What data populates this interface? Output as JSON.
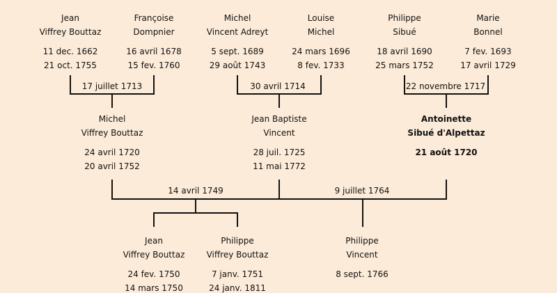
{
  "generation1": [
    {
      "first": "Jean",
      "last": "Viffrey Bouttaz",
      "born": "11 dec. 1662",
      "died": "21 oct. 1755"
    },
    {
      "first": "Françoise",
      "last": "Dompnier",
      "born": "16 avril 1678",
      "died": "15 fev. 1760"
    },
    {
      "first": "Michel",
      "last": "Vincent Adreyt",
      "born": "5 sept. 1689",
      "died": "29 août 1743"
    },
    {
      "first": "Louise",
      "last": "Michel",
      "born": "24 mars 1696",
      "died": "8 fev. 1733"
    },
    {
      "first": "Philippe",
      "last": "Sibué",
      "born": "18 avril 1690",
      "died": "25 mars 1752"
    },
    {
      "first": "Marie",
      "last": "Bonnel",
      "born": "7 fev. 1693",
      "died": "17 avril 1729"
    }
  ],
  "marriages1": [
    "17 juillet 1713",
    "30 avril 1714",
    "22 novembre 1717"
  ],
  "generation2": [
    {
      "first": "Michel",
      "last": "Viffrey Bouttaz",
      "born": "24 avril 1720",
      "died": "20 avril 1752"
    },
    {
      "first": "Jean Baptiste",
      "last": "Vincent",
      "born": "28 juil. 1725",
      "died": "11 mai 1772"
    },
    {
      "first": "Antoinette",
      "last": "Sibué d'Alpettaz",
      "born": "21 août 1720"
    }
  ],
  "marriages2": [
    "14 avril 1749",
    "9 juillet 1764"
  ],
  "generation3": [
    {
      "first": "Jean",
      "last": "Viffrey Bouttaz",
      "born": "24 fev. 1750",
      "died": "14 mars 1750"
    },
    {
      "first": "Philippe",
      "last": "Viffrey Bouttaz",
      "born": "7 janv. 1751",
      "died": "24 janv. 1811"
    },
    {
      "first": "Philippe",
      "last": "Vincent",
      "born": "8 sept. 1766"
    }
  ],
  "colors": {
    "background": "#fcebd8",
    "lines": "#111111"
  }
}
